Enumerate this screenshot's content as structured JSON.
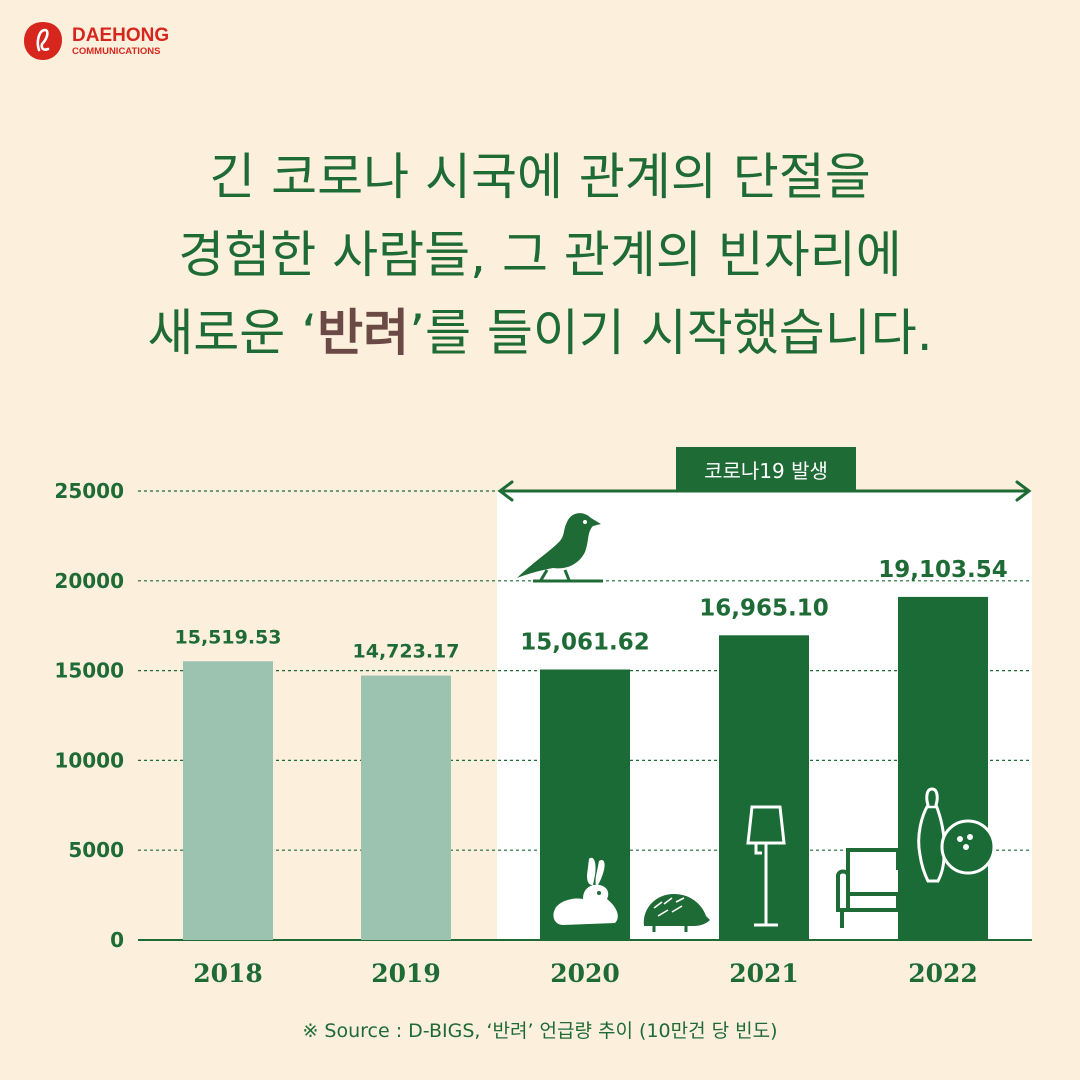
{
  "brand": {
    "name": "DAEHONG",
    "sub": "COMMUNICATIONS",
    "color": "#d7261e"
  },
  "headline": {
    "line1": "긴 코로나 시국에 관계의 단절을",
    "line2": "경험한 사람들, 그 관계의 빈자리에",
    "line3_pre": "새로운 ‘",
    "line3_hl": "반려",
    "line3_post": "’를 들이기 시작했습니다."
  },
  "colors": {
    "background": "#fcf0dc",
    "primary_green": "#1f6b36",
    "light_bar": "#9cc3b0",
    "dark_bar": "#1a6b35",
    "highlight_text": "#6b4a45"
  },
  "chart_data": {
    "type": "bar",
    "categories": [
      "2018",
      "2019",
      "2020",
      "2021",
      "2022"
    ],
    "values": [
      15519.53,
      14723.17,
      15061.62,
      16965.1,
      19103.54
    ],
    "value_labels": [
      "15,519.53",
      "14,723.17",
      "15,061.62",
      "16,965.10",
      "19,103.54"
    ],
    "y_ticks": [
      "0",
      "5000",
      "10000",
      "15000",
      "20000",
      "25000"
    ],
    "ylim": [
      0,
      25000
    ],
    "grid": true,
    "annotation": "코로나19 발생",
    "highlight_categories": [
      "2020",
      "2021",
      "2022"
    ],
    "icons": [
      "bird-icon",
      "rabbit-icon",
      "hedgehog-icon",
      "floor-lamp-icon",
      "sofa-icon",
      "bowling-icon"
    ]
  },
  "source": "※ Source : D-BIGS, ‘반려’ 언급량 추이 (10만건 당 빈도)"
}
